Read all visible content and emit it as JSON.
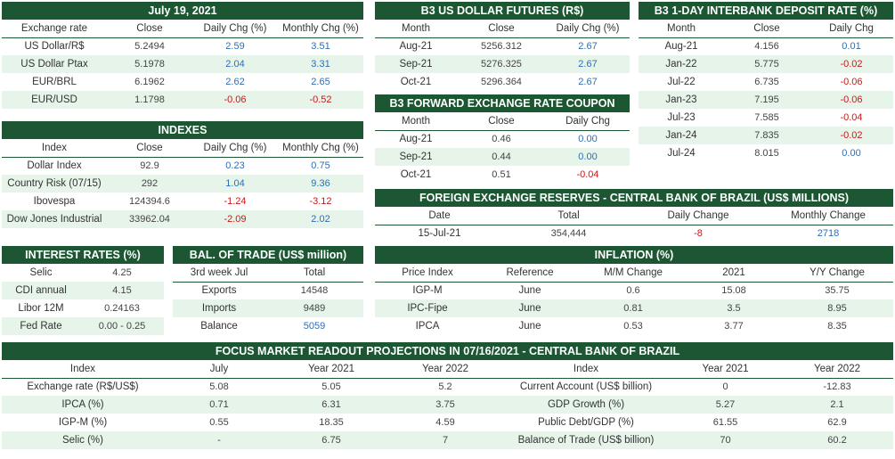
{
  "exchange": {
    "title": "July 19, 2021",
    "cols": [
      "Exchange rate",
      "Close",
      "Daily Chg (%)",
      "Monthly Chg (%)"
    ],
    "rows": [
      [
        "US Dollar/R$",
        "5.2494",
        "2.59",
        "3.51"
      ],
      [
        "US Dollar Ptax",
        "5.1978",
        "2.04",
        "3.31"
      ],
      [
        "EUR/BRL",
        "6.1962",
        "2.62",
        "2.65"
      ],
      [
        "EUR/USD",
        "1.1798",
        "-0.06",
        "-0.52"
      ]
    ]
  },
  "futures": {
    "title": "B3 US DOLLAR FUTURES (R$)",
    "cols": [
      "Month",
      "Close",
      "Daily Chg (%)"
    ],
    "rows": [
      [
        "Aug-21",
        "5256.312",
        "2.67"
      ],
      [
        "Sep-21",
        "5276.325",
        "2.67"
      ],
      [
        "Oct-21",
        "5296.364",
        "2.67"
      ]
    ]
  },
  "interbank": {
    "title": "B3 1-DAY INTERBANK DEPOSIT RATE (%)",
    "cols": [
      "Month",
      "Close",
      "Daily Chg"
    ],
    "rows": [
      [
        "Aug-21",
        "4.156",
        "0.01"
      ],
      [
        "Jan-22",
        "5.775",
        "-0.02"
      ],
      [
        "Jul-22",
        "6.735",
        "-0.06"
      ],
      [
        "Jan-23",
        "7.195",
        "-0.06"
      ],
      [
        "Jul-23",
        "7.585",
        "-0.04"
      ],
      [
        "Jan-24",
        "7.835",
        "-0.02"
      ],
      [
        "Jul-24",
        "8.015",
        "0.00"
      ]
    ]
  },
  "coupon": {
    "title": "B3 FORWARD EXCHANGE RATE COUPON",
    "cols": [
      "Month",
      "Close",
      "Daily Chg"
    ],
    "rows": [
      [
        "Aug-21",
        "0.46",
        "0.00"
      ],
      [
        "Sep-21",
        "0.44",
        "0.00"
      ],
      [
        "Oct-21",
        "0.51",
        "-0.04"
      ]
    ]
  },
  "indexes": {
    "title": "INDEXES",
    "cols": [
      "Index",
      "Close",
      "Daily Chg (%)",
      "Monthly Chg (%)"
    ],
    "rows": [
      [
        "Dollar Index",
        "92.9",
        "0.23",
        "0.75"
      ],
      [
        "Country Risk (07/15)",
        "292",
        "1.04",
        "9.36"
      ],
      [
        "Ibovespa",
        "124394.6",
        "-1.24",
        "-3.12"
      ],
      [
        "Dow Jones Industrial",
        "33962.04",
        "-2.09",
        "2.02"
      ]
    ]
  },
  "reserves": {
    "title": "FOREIGN EXCHANGE RESERVES - CENTRAL BANK OF BRAZIL (US$ MILLIONS)",
    "cols": [
      "Date",
      "Total",
      "Daily Change",
      "Monthly Change"
    ],
    "rows": [
      [
        "15-Jul-21",
        "354,444",
        "-8",
        "2718"
      ]
    ]
  },
  "interest": {
    "title": "INTEREST RATES (%)",
    "rows": [
      [
        "Selic",
        "4.25"
      ],
      [
        "CDI annual",
        "4.15"
      ],
      [
        "Libor 12M",
        "0.24163"
      ],
      [
        "Fed Rate",
        "0.00 - 0.25"
      ]
    ]
  },
  "trade": {
    "title": "BAL. OF TRADE (US$ million)",
    "cols": [
      "3rd week Jul",
      "Total"
    ],
    "rows": [
      [
        "Exports",
        "14548"
      ],
      [
        "Imports",
        "9489"
      ],
      [
        "Balance",
        "5059"
      ]
    ]
  },
  "inflation": {
    "title": "INFLATION (%)",
    "cols": [
      "Price Index",
      "Reference",
      "M/M Change",
      "2021",
      "Y/Y Change"
    ],
    "rows": [
      [
        "IGP-M",
        "June",
        "0.6",
        "15.08",
        "35.75"
      ],
      [
        "IPC-Fipe",
        "June",
        "0.81",
        "3.5",
        "8.95"
      ],
      [
        "IPCA",
        "June",
        "0.53",
        "3.77",
        "8.35"
      ]
    ]
  },
  "focus": {
    "title": "FOCUS MARKET READOUT PROJECTIONS IN 07/16/2021 - CENTRAL BANK OF BRAZIL",
    "cols": [
      "Index",
      "July",
      "Year 2021",
      "Year 2022",
      "Index",
      "Year 2021",
      "Year 2022"
    ],
    "rows": [
      [
        "Exchange rate (R$/US$)",
        "5.08",
        "5.05",
        "5.2",
        "Current Account (US$ billion)",
        "0",
        "-12.83"
      ],
      [
        "IPCA (%)",
        "0.71",
        "6.31",
        "3.75",
        "GDP Growth (%)",
        "5.27",
        "2.1"
      ],
      [
        "IGP-M (%)",
        "0.55",
        "18.35",
        "4.59",
        "Public Debt/GDP (%)",
        "61.55",
        "62.9"
      ],
      [
        "Selic (%)",
        "-",
        "6.75",
        "7",
        "Balance of Trade (US$ billion)",
        "70",
        "60.2"
      ]
    ]
  },
  "colors": {
    "header": "#1d5633",
    "band": "#e6f4ea",
    "positive": "#2d6fb5",
    "negative": "#c41a1a"
  }
}
